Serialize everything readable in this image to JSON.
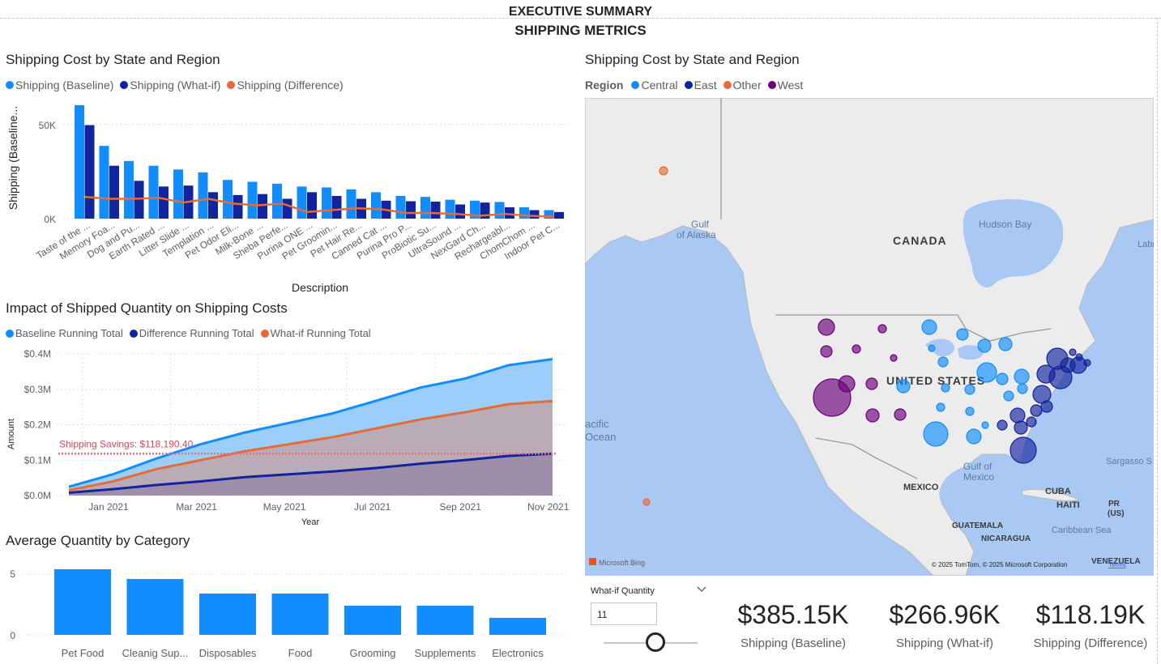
{
  "report": {
    "top_title": "EXECUTIVE SUMMARY",
    "page_title": "SHIPPING METRICS"
  },
  "bar_chart": {
    "title": "Shipping Cost by State and Region",
    "legend": [
      {
        "label": "Shipping (Baseline)",
        "color": "#118DFF"
      },
      {
        "label": "Shipping (What-if)",
        "color": "#12239E"
      },
      {
        "label": "Shipping (Difference)",
        "color": "#E66C37"
      }
    ],
    "ylabel": "Shipping (Baseline...",
    "xlabel": "Description",
    "yticks": [
      "50K",
      "0K"
    ]
  },
  "line_chart": {
    "title": "Impact of Shipped Quantity on Shipping Costs",
    "legend": [
      {
        "label": "Baseline Running Total",
        "color": "#118DFF"
      },
      {
        "label": "Difference Running Total",
        "color": "#12239E"
      },
      {
        "label": "What-if Running Total",
        "color": "#E66C37"
      }
    ],
    "ylabel": "Amount",
    "xlabel": "Year",
    "yticks": [
      "$0.4M",
      "$0.3M",
      "$0.2M",
      "$0.1M",
      "$0.0M"
    ],
    "xticks": [
      "Jan 2021",
      "Mar 2021",
      "May 2021",
      "Jul 2021",
      "Sep 2021",
      "Nov 2021"
    ],
    "annotation": "Shipping Savings: $118,190.40"
  },
  "avg_chart": {
    "title": "Average Quantity by Category",
    "yticks": [
      "5",
      "0"
    ]
  },
  "map": {
    "title": "Shipping Cost by State and Region",
    "legend_title": "Region",
    "legend": [
      {
        "label": "Central",
        "color": "#118DFF"
      },
      {
        "label": "East",
        "color": "#12239E"
      },
      {
        "label": "Other",
        "color": "#E66C37"
      },
      {
        "label": "West",
        "color": "#6B007B"
      }
    ],
    "labels": {
      "canada": "CANADA",
      "united_states": "UNITED STATES",
      "mexico": "MEXICO",
      "hudson_bay": "Hudson Bay",
      "gulf_alaska_1": "Gulf",
      "gulf_alaska_2": "of Alaska",
      "pacific_1": "acific",
      "pacific_2": "Ocean",
      "gulf_mexico_1": "Gulf of",
      "gulf_mexico_2": "Mexico",
      "cuba": "CUBA",
      "haiti": "HAITI",
      "pr": "PR",
      "us": "(US)",
      "caribbean": "Caribbean Sea",
      "sargasso": "Sargasso S",
      "guatemala": "GUATEMALA",
      "nicaragua": "NICARAGUA",
      "venezuela": "VENEZUELA",
      "labr": "Labr"
    },
    "logo": "Microsoft Bing",
    "attribution": "© 2025 TomTom, © 2025 Microsoft Corporation",
    "terms": "Terms"
  },
  "slicer": {
    "title": "What-if Quantity",
    "value": "11",
    "slider_position": 0.55
  },
  "cards": [
    {
      "value": "$385.15K",
      "label": "Shipping (Baseline)"
    },
    {
      "value": "$266.96K",
      "label": "Shipping (What-if)"
    },
    {
      "value": "$118.19K",
      "label": "Shipping (Difference)"
    }
  ],
  "chart_data": [
    {
      "type": "bar",
      "title": "Shipping Cost by State and Region",
      "xlabel": "Description",
      "ylabel": "Shipping (Baseline...",
      "ylim": [
        0,
        60000
      ],
      "categories": [
        "Taste of the ...",
        "Memory Foa...",
        "Dog and Pu...",
        "Earth Rated ...",
        "Litter Slide ...",
        "Templation ...",
        "Pet Odor Eli...",
        "Milk-Bone ...",
        "Sheba Perfe...",
        "Purina ONE ...",
        "Pet Groomin...",
        "Pet Hair Re...",
        "Canned Cat ...",
        "Purina Pro P...",
        "ProBiotic Su...",
        "UltraSound ...",
        "NexGard Ch...",
        "Rechargeabl...",
        "ChomChom ...",
        "Indoor Pet C..."
      ],
      "series": [
        {
          "name": "Shipping (Baseline)",
          "values": [
            60000,
            38500,
            30500,
            28000,
            26000,
            24500,
            20500,
            19500,
            18500,
            17000,
            16500,
            15500,
            14000,
            12000,
            11500,
            10000,
            9500,
            8800,
            6000,
            4500
          ]
        },
        {
          "name": "Shipping (What-if)",
          "values": [
            49500,
            28000,
            20000,
            17000,
            17500,
            14000,
            12500,
            13000,
            10500,
            14000,
            12000,
            10500,
            9500,
            9200,
            9000,
            7500,
            8500,
            6000,
            4500,
            3500
          ]
        },
        {
          "name": "Shipping (Difference)",
          "values": [
            11500,
            10500,
            10500,
            11000,
            8500,
            10500,
            8000,
            7000,
            8000,
            3500,
            4500,
            5500,
            5000,
            3000,
            3000,
            2500,
            1500,
            2500,
            1500,
            1000
          ]
        }
      ]
    },
    {
      "type": "area",
      "title": "Impact of Shipped Quantity on Shipping Costs",
      "xlabel": "Year",
      "ylabel": "Amount",
      "ylim": [
        0,
        400000
      ],
      "x": [
        "Jan 2021",
        "Feb 2021",
        "Mar 2021",
        "Apr 2021",
        "May 2021",
        "Jun 2021",
        "Jul 2021",
        "Aug 2021",
        "Sep 2021",
        "Oct 2021",
        "Nov 2021",
        "Dec 2021"
      ],
      "series": [
        {
          "name": "Baseline Running Total",
          "values": [
            25000,
            60000,
            105000,
            145000,
            178000,
            205000,
            232000,
            268000,
            305000,
            330000,
            368000,
            385150
          ]
        },
        {
          "name": "What-if Running Total",
          "values": [
            15000,
            40000,
            75000,
            100000,
            125000,
            145000,
            165000,
            190000,
            215000,
            235000,
            258000,
            266960
          ]
        },
        {
          "name": "Difference Running Total",
          "values": [
            8000,
            18000,
            30000,
            40000,
            52000,
            60000,
            68000,
            78000,
            90000,
            100000,
            112000,
            118190
          ]
        }
      ],
      "reference_line": {
        "label": "Shipping Savings: $118,190.40",
        "value": 118190.4
      }
    },
    {
      "type": "bar",
      "title": "Average Quantity by Category",
      "ylim": [
        0,
        6
      ],
      "categories": [
        "Pet Food",
        "Cleanig Sup...",
        "Disposables",
        "Food",
        "Grooming",
        "Supplements",
        "Electronics"
      ],
      "values": [
        5.4,
        4.6,
        3.4,
        3.4,
        2.4,
        2.4,
        1.4
      ]
    }
  ]
}
